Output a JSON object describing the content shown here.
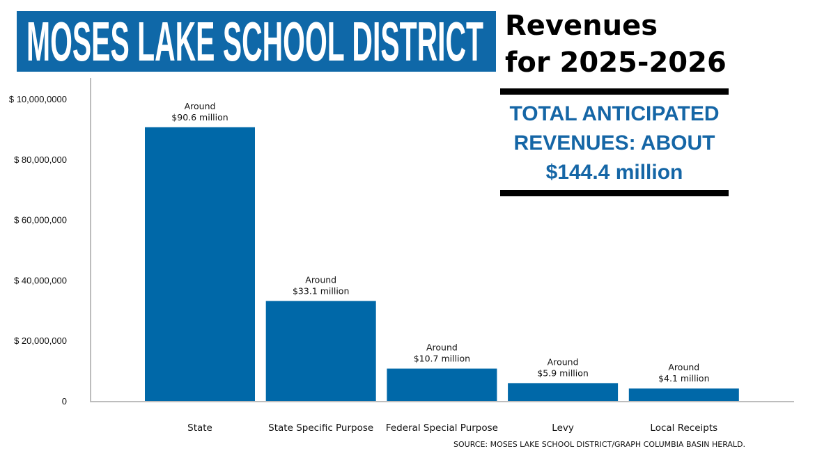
{
  "header": {
    "title": "MOSES LAKE SCHOOL DISTRICT",
    "subtitle_line1": "Revenues",
    "subtitle_line2": "for 2025-2026"
  },
  "callout": {
    "line1": "TOTAL ANTICIPATED",
    "line2": "REVENUES: ABOUT",
    "line3": "$144.4 million"
  },
  "source": "SOURCE: MOSES LAKE SCHOOL DISTRICT/GRAPH COLUMBIA BASIN HERALD.",
  "colors": {
    "bar": "#0068a8",
    "banner": "#0f68a8",
    "callout": "#1566a6",
    "axis": "#bdbdbd"
  },
  "chart_data": {
    "type": "bar",
    "title": "Revenues for 2025-2026",
    "xlabel": "",
    "ylabel": "",
    "ylim": [
      0,
      100000000
    ],
    "grid": false,
    "yticks": [
      {
        "value": 0,
        "label": "0"
      },
      {
        "value": 20000000,
        "label": "$ 20,000,000"
      },
      {
        "value": 40000000,
        "label": "$ 40,000,000"
      },
      {
        "value": 60000000,
        "label": "$ 60,000,000"
      },
      {
        "value": 80000000,
        "label": "$ 80,000,000"
      },
      {
        "value": 100000000,
        "label": "$ 10,000,0000"
      }
    ],
    "categories": [
      "State",
      "State Specific Purpose",
      "Federal Special Purpose",
      "Levy",
      "Local Receipts"
    ],
    "values": [
      90600000,
      33100000,
      10700000,
      5900000,
      4100000
    ],
    "data_labels": [
      [
        "Around",
        "$90.6 million"
      ],
      [
        "Around",
        "$33.1 million"
      ],
      [
        "Around",
        "$10.7 million"
      ],
      [
        "Around",
        "$5.9 million"
      ],
      [
        "Around",
        "$4.1 million"
      ]
    ]
  }
}
